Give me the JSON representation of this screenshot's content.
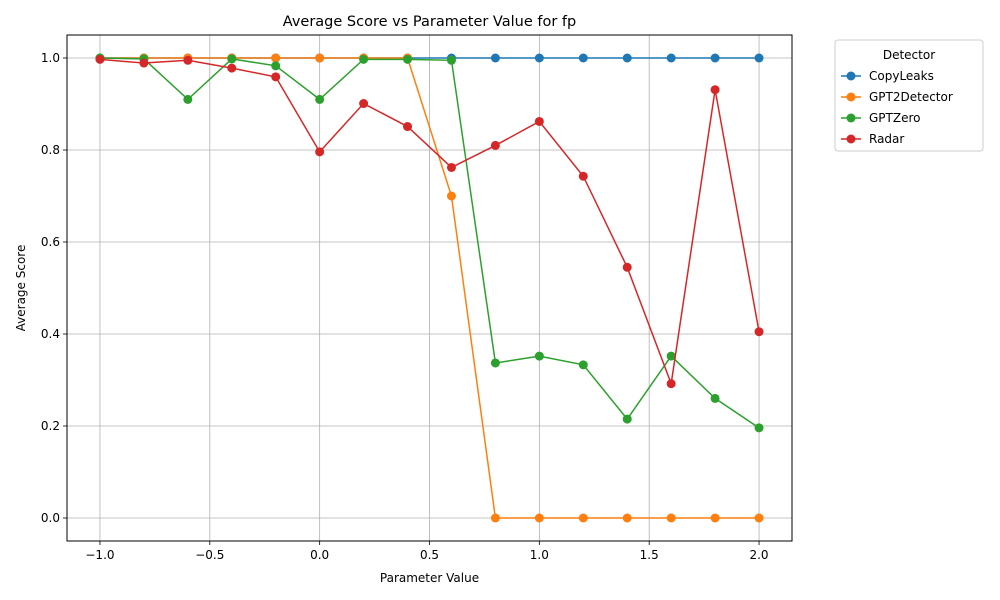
{
  "chart_data": {
    "type": "line",
    "title": "Average Score vs Parameter Value for fp",
    "xlabel": "Parameter Value",
    "ylabel": "Average Score",
    "xlim": [
      -1.15,
      2.15
    ],
    "ylim": [
      -0.05,
      1.05
    ],
    "xticks": [
      -1.0,
      -0.5,
      0.0,
      0.5,
      1.0,
      1.5,
      2.0
    ],
    "xtick_labels": [
      "−1.0",
      "−0.5",
      "0.0",
      "0.5",
      "1.0",
      "1.5",
      "2.0"
    ],
    "yticks": [
      0.0,
      0.2,
      0.4,
      0.6,
      0.8,
      1.0
    ],
    "ytick_labels": [
      "0.0",
      "0.2",
      "0.4",
      "0.6",
      "0.8",
      "1.0"
    ],
    "grid": true,
    "legend_title": "Detector",
    "legend_position": "outside-top-right",
    "x": [
      -1.0,
      -0.8,
      -0.6,
      -0.4,
      -0.2,
      0.0,
      0.2,
      0.4,
      0.6,
      0.8,
      1.0,
      1.2,
      1.4,
      1.6,
      1.8,
      2.0
    ],
    "series": [
      {
        "name": "CopyLeaks",
        "color": "#1f77b4",
        "values": [
          1.0,
          1.0,
          1.0,
          1.0,
          1.0,
          1.0,
          1.0,
          1.0,
          1.0,
          1.0,
          1.0,
          1.0,
          1.0,
          1.0,
          1.0,
          1.0
        ]
      },
      {
        "name": "GPT2Detector",
        "color": "#ff7f0e",
        "values": [
          1.0,
          1.0,
          1.0,
          1.0,
          1.0,
          1.0,
          1.0,
          1.0,
          0.7,
          0.0,
          0.0,
          0.0,
          0.0,
          0.0,
          0.0,
          0.0
        ]
      },
      {
        "name": "GPTZero",
        "color": "#2ca02c",
        "values": [
          1.0,
          0.998,
          0.91,
          0.998,
          0.983,
          0.91,
          0.997,
          0.997,
          0.995,
          0.337,
          0.352,
          0.333,
          0.215,
          0.352,
          0.26,
          0.196
        ]
      },
      {
        "name": "Radar",
        "color": "#d62728",
        "values": [
          0.997,
          0.989,
          0.995,
          0.978,
          0.959,
          0.796,
          0.901,
          0.851,
          0.762,
          0.81,
          0.862,
          0.743,
          0.545,
          0.292,
          0.931,
          0.405
        ]
      }
    ]
  }
}
